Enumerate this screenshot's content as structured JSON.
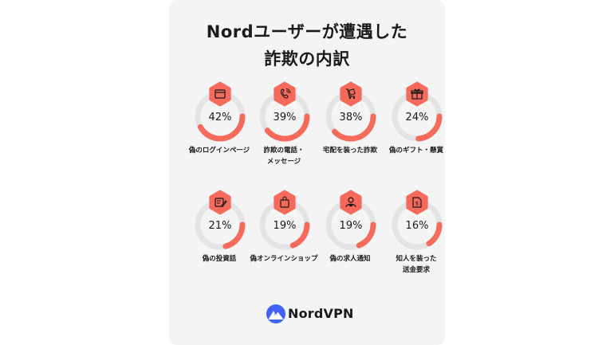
{
  "title": {
    "line1": "Nordユーザーが遭遇した",
    "line2": "詐欺の内訳"
  },
  "colors": {
    "accent": "#f56a5b",
    "track": "#e4e4e4",
    "brand_blue": "#4163f5"
  },
  "chart_data": {
    "type": "gauge",
    "unit": "%",
    "items": [
      {
        "label": "偽のログインページ",
        "value": 42,
        "value_label": "42%",
        "icon": "browser-window-icon"
      },
      {
        "label": "詐欺の電話・メッセージ",
        "label_lines": [
          "詐欺の電話・",
          "メッセージ"
        ],
        "value": 39,
        "value_label": "39%",
        "icon": "phone-call-icon"
      },
      {
        "label": "宅配を装った詐欺",
        "value": 38,
        "value_label": "38%",
        "icon": "delivery-cart-icon"
      },
      {
        "label": "偽のギフト・懸賞",
        "value": 24,
        "value_label": "24%",
        "icon": "gift-box-icon"
      },
      {
        "label": "偽の投資話",
        "value": 21,
        "value_label": "21%",
        "icon": "document-pen-icon"
      },
      {
        "label": "偽オンラインショップ",
        "value": 19,
        "value_label": "19%",
        "icon": "shopping-bag-icon"
      },
      {
        "label": "偽の求人通知",
        "value": 19,
        "value_label": "19%",
        "icon": "job-person-icon"
      },
      {
        "label": "知人を装った送金要求",
        "label_lines": [
          "知人を装った",
          "送金要求"
        ],
        "value": 16,
        "value_label": "16%",
        "icon": "money-document-icon"
      }
    ]
  },
  "brand": {
    "name": "NordVPN",
    "icon": "nordvpn-mountain-icon"
  }
}
